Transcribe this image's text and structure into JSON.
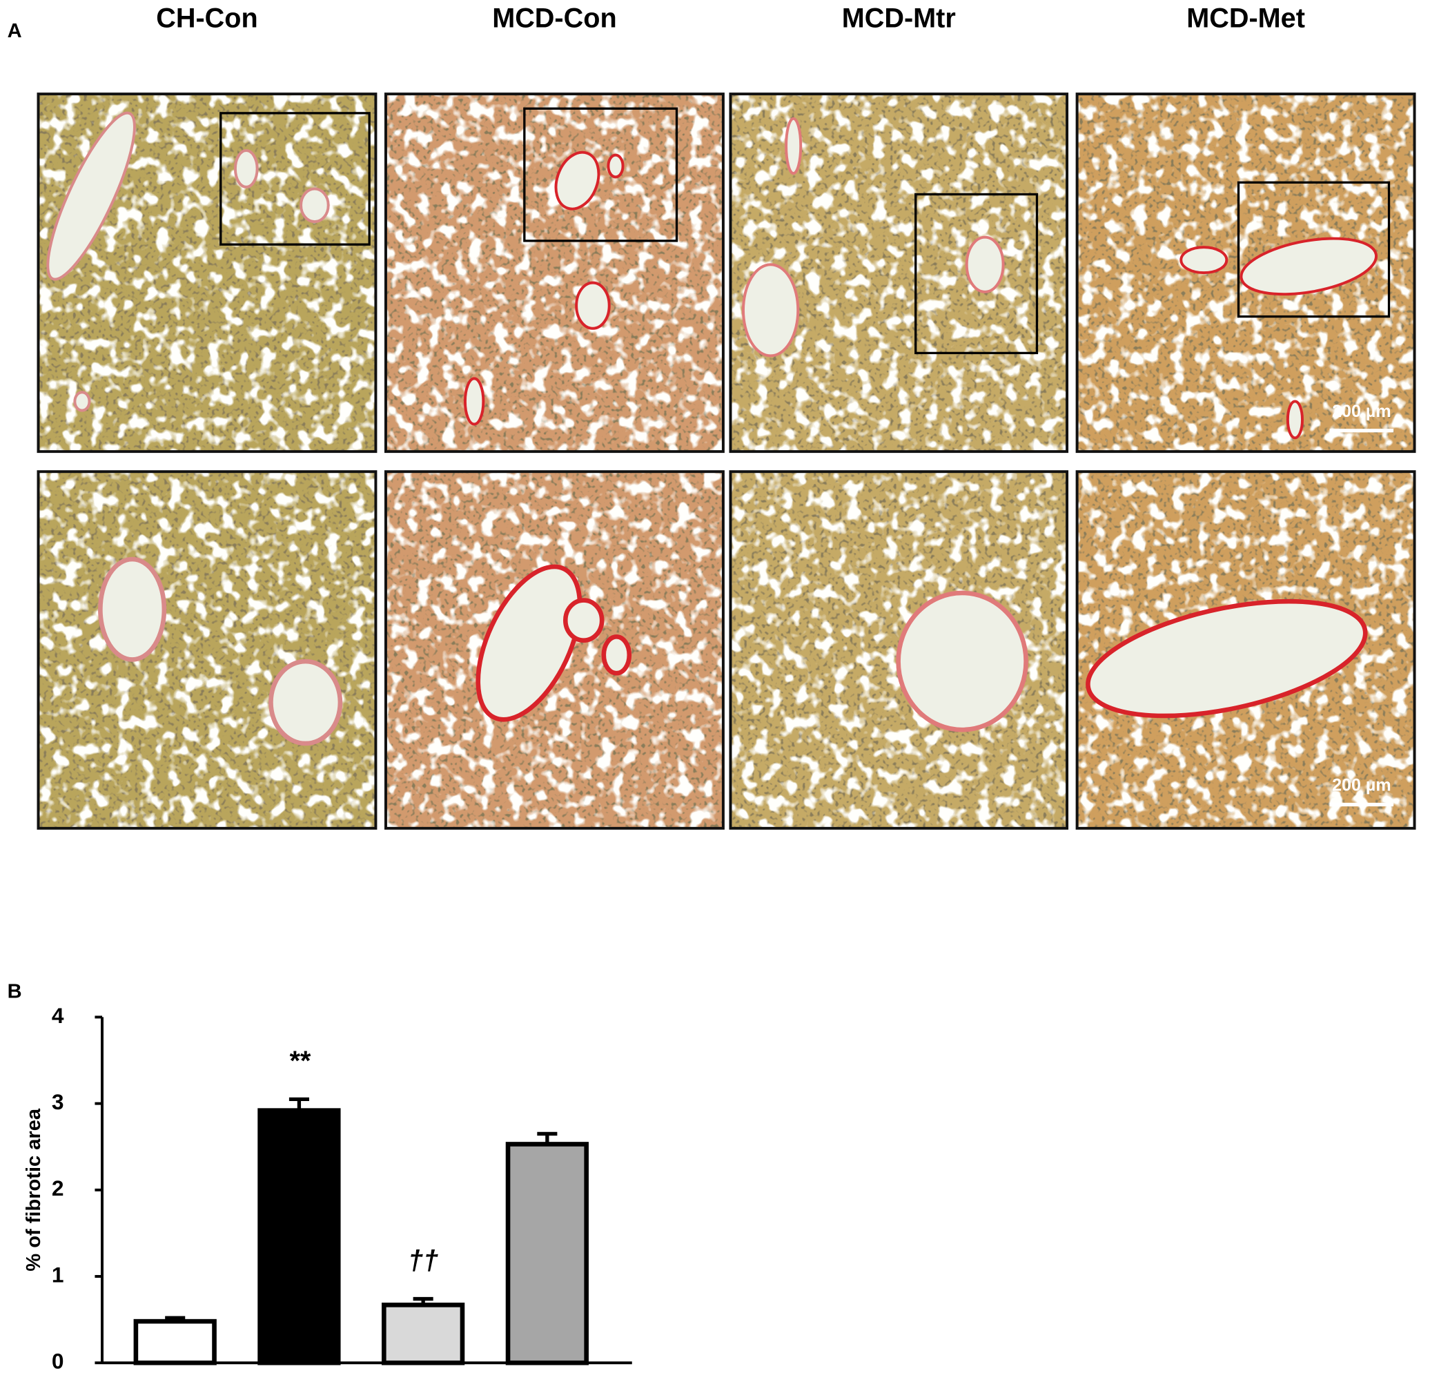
{
  "panel_a": {
    "label": "A",
    "columns": [
      "CH-Con",
      "MCD-Con",
      "MCD-Mtr",
      "MCD-Met"
    ],
    "scale_bars": [
      "200 µm",
      "200 µm"
    ]
  },
  "chart_data": {
    "type": "bar",
    "panel_label": "B",
    "ylabel": "% of fibrotic area",
    "categories": [
      null,
      null,
      null,
      null
    ],
    "values": [
      0.48,
      2.92,
      0.67,
      2.53
    ],
    "errors": [
      0.04,
      0.13,
      0.07,
      0.12
    ],
    "colors": [
      "#ffffff",
      "#000000",
      "#d9d9d9",
      "#a6a6a6"
    ],
    "annotations": [
      null,
      "**",
      "††",
      null
    ],
    "ylim": [
      0,
      4
    ],
    "yticks": [
      0,
      1,
      2,
      3,
      4
    ],
    "grid": false
  }
}
